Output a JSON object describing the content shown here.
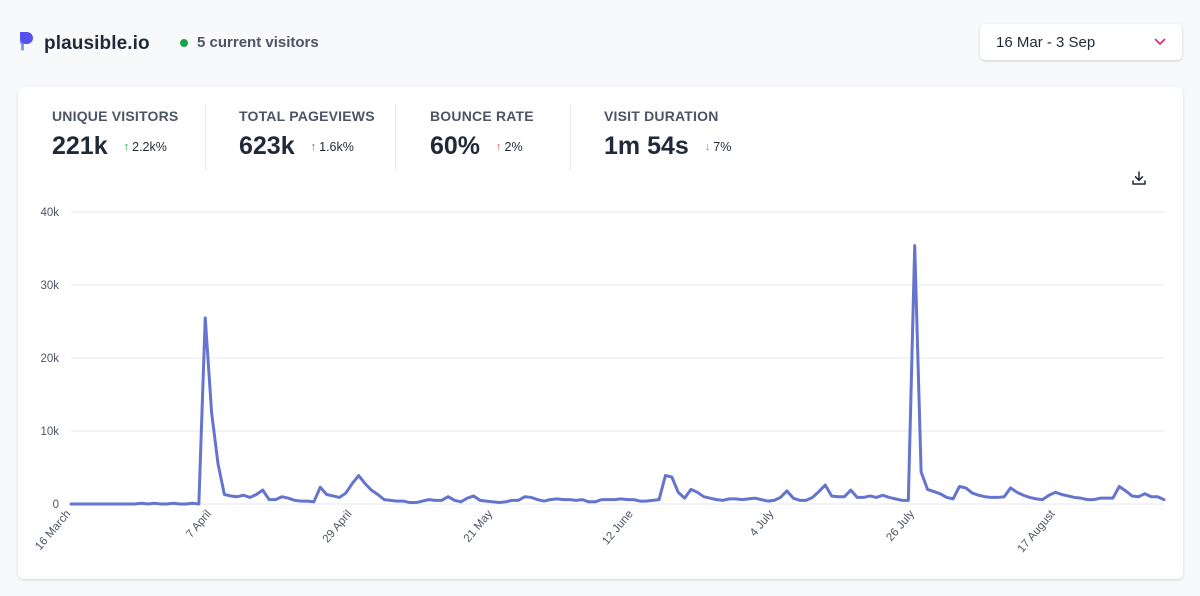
{
  "header": {
    "site_name": "plausible.io",
    "current_visitors": "5 current visitors",
    "date_range": "16 Mar - 3 Sep"
  },
  "stats": [
    {
      "label": "UNIQUE VISITORS",
      "value": "221k",
      "change": "2.2k%",
      "direction": "up",
      "sentiment": "good"
    },
    {
      "label": "TOTAL PAGEVIEWS",
      "value": "623k",
      "change": "1.6k%",
      "direction": "up",
      "sentiment": "good"
    },
    {
      "label": "BOUNCE RATE",
      "value": "60%",
      "change": "2%",
      "direction": "up",
      "sentiment": "bad"
    },
    {
      "label": "VISIT DURATION",
      "value": "1m 54s",
      "change": "7%",
      "direction": "down",
      "sentiment": "bad"
    }
  ],
  "colors": {
    "accent": "#6574cd",
    "positive": "#16a34a",
    "negative": "#dc2626",
    "gridline": "#e5e7eb"
  },
  "icons": {
    "logo": "plausible-logo-icon",
    "date_picker": "chevron-down-icon",
    "download": "download-icon"
  },
  "chart_data": {
    "type": "line",
    "title": "",
    "xlabel": "",
    "ylabel": "",
    "ylim": [
      0,
      40000
    ],
    "y_ticks": [
      0,
      10000,
      20000,
      30000,
      40000
    ],
    "y_tick_labels": [
      "0",
      "10k",
      "20k",
      "30k",
      "40k"
    ],
    "x_tick_labels": [
      "16 March",
      "7 April",
      "29 April",
      "21 May",
      "12 June",
      "4 July",
      "26 July",
      "17 August"
    ],
    "x_tick_indices": [
      0,
      22,
      44,
      66,
      88,
      110,
      132,
      154
    ],
    "grid": true,
    "series": [
      {
        "values": [
          0,
          0,
          0,
          0,
          0,
          0,
          0,
          0,
          0,
          0,
          0,
          100,
          0,
          100,
          0,
          0,
          100,
          0,
          0,
          100,
          0,
          25500,
          12500,
          5500,
          1300,
          1100,
          1000,
          1200,
          900,
          1300,
          1900,
          600,
          600,
          1000,
          800,
          500,
          400,
          400,
          300,
          2300,
          1300,
          1100,
          900,
          1500,
          2800,
          3900,
          2800,
          1900,
          1300,
          600,
          500,
          400,
          400,
          200,
          200,
          400,
          600,
          500,
          500,
          1000,
          500,
          300,
          800,
          1100,
          500,
          400,
          300,
          200,
          300,
          500,
          500,
          1000,
          900,
          600,
          400,
          600,
          700,
          600,
          600,
          500,
          600,
          300,
          300,
          600,
          600,
          600,
          700,
          600,
          600,
          400,
          400,
          500,
          600,
          3900,
          3700,
          1600,
          800,
          2000,
          1600,
          1000,
          800,
          600,
          500,
          700,
          700,
          600,
          700,
          800,
          600,
          400,
          500,
          900,
          1800,
          800,
          500,
          500,
          900,
          1700,
          2600,
          1100,
          1000,
          1000,
          1900,
          900,
          900,
          1100,
          900,
          1200,
          900,
          700,
          500,
          500,
          35400,
          4400,
          2000,
          1700,
          1400,
          900,
          700,
          2400,
          2200,
          1500,
          1200,
          1000,
          900,
          900,
          1000,
          2200,
          1600,
          1200,
          900,
          700,
          600,
          1200,
          1600,
          1300,
          1100,
          900,
          800,
          600,
          600,
          800,
          800,
          800,
          2400,
          1800,
          1100,
          1000,
          1400,
          1000,
          1000,
          600
        ]
      }
    ]
  }
}
